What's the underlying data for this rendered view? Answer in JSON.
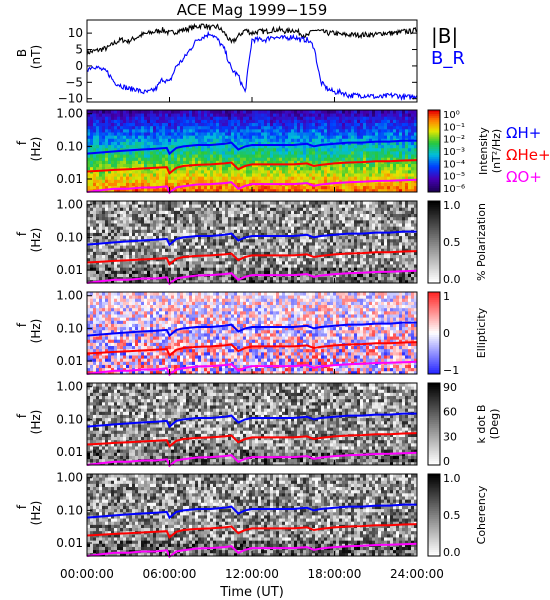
{
  "figure": {
    "title": "ACE Mag 1999−159",
    "x_axis": {
      "label": "Time (UT)",
      "ticks": [
        "00:00:00",
        "06:00:00",
        "12:00:00",
        "18:00:00",
        "24:00:00"
      ],
      "range_hours": [
        0,
        24
      ]
    }
  },
  "chart_data": [
    {
      "type": "line",
      "panel": "magnetic-field",
      "ylabel": "B",
      "yunit": "(nT)",
      "ylim": [
        -11,
        14
      ],
      "yticks": [
        "10",
        "5",
        "0",
        "−5",
        "−10"
      ],
      "ytick_values": [
        10,
        5,
        0,
        -5,
        -10
      ],
      "legend_placement": "right",
      "series": [
        {
          "name": "|B|",
          "color": "#000000",
          "x": [
            0,
            0.5,
            1,
            1.5,
            2,
            2.5,
            3,
            3.5,
            4,
            4.5,
            5,
            5.5,
            6,
            6.5,
            7,
            7.5,
            8,
            8.5,
            9,
            9.5,
            10,
            10.5,
            11,
            11.5,
            12,
            12.5,
            13,
            13.5,
            14,
            14.5,
            15,
            15.5,
            16,
            16.5,
            17,
            17.5,
            18,
            18.5,
            19,
            19.5,
            20,
            20.5,
            21,
            21.5,
            22,
            22.5,
            23,
            23.5,
            24
          ],
          "y": [
            4,
            4.5,
            5,
            5.5,
            7,
            8,
            7.5,
            8.5,
            9.5,
            10,
            10.5,
            11,
            10,
            10.5,
            11,
            11.5,
            12,
            12.5,
            11.5,
            12,
            10,
            7,
            9,
            11,
            10,
            10.5,
            10.5,
            11,
            11,
            10.5,
            11,
            10,
            9,
            11,
            10.5,
            10,
            10,
            9.5,
            9.5,
            9.5,
            9.5,
            9.5,
            9.5,
            10,
            10,
            10,
            10.5,
            10.5,
            11
          ]
        },
        {
          "name": "B_R",
          "color": "#0000ff",
          "x": [
            0,
            0.5,
            1,
            1.5,
            2,
            2.5,
            3,
            3.5,
            4,
            4.5,
            5,
            5.5,
            6,
            6.5,
            7,
            7.5,
            8,
            8.5,
            9,
            9.5,
            10,
            10.5,
            11,
            11.5,
            12,
            12.5,
            13,
            13.5,
            14,
            14.5,
            15,
            15.5,
            16,
            16.5,
            17,
            17.5,
            18,
            18.5,
            19,
            19.5,
            20,
            20.5,
            21,
            21.5,
            22,
            22.5,
            23,
            23.5,
            24
          ],
          "y": [
            -1,
            0,
            -1,
            -2,
            -5,
            -6,
            -7,
            -7,
            -8,
            -8,
            -7,
            -4,
            -5,
            0,
            2,
            5,
            8,
            9,
            10,
            8,
            5,
            -1,
            -3,
            -8,
            8,
            8,
            8,
            9,
            8.5,
            8.5,
            9,
            8,
            8,
            6,
            -5,
            -7,
            -8,
            -8,
            -9,
            -9,
            -9,
            -9,
            -9.5,
            -9.5,
            -9,
            -9,
            -9.5,
            -9.5,
            -9
          ]
        }
      ]
    },
    {
      "type": "heatmap",
      "panel": "intensity",
      "ylabel": "f",
      "yunit": "(Hz)",
      "yscale": "log",
      "ylim": [
        0.004,
        1.3
      ],
      "yticks": [
        "1.00",
        "0.10",
        "0.01"
      ],
      "ytick_values": [
        1,
        0.1,
        0.01
      ],
      "colorbar": {
        "label": "Intensity",
        "unit": "(nT²/Hz)",
        "ticks": [
          "10⁰",
          "10⁻¹",
          "10⁻²",
          "10⁻³",
          "10⁻⁴",
          "10⁻⁵",
          "10⁻⁶"
        ],
        "colormap": "rainbow"
      },
      "overlay_labels": [
        {
          "text": "ΩH+",
          "color": "#0000ff"
        },
        {
          "text": "ΩHe+",
          "color": "#ff0000"
        },
        {
          "text": "ΩO+",
          "color": "#ff00ff"
        }
      ]
    },
    {
      "type": "heatmap",
      "panel": "polarization",
      "ylabel": "f",
      "yunit": "(Hz)",
      "yscale": "log",
      "ylim": [
        0.004,
        1.3
      ],
      "yticks": [
        "1.00",
        "0.10",
        "0.01"
      ],
      "ytick_values": [
        1,
        0.1,
        0.01
      ],
      "colorbar": {
        "label": "% Polarization",
        "unit": "",
        "ticks": [
          "1.0",
          "0.5",
          "0.0"
        ],
        "colormap": "grayscale"
      }
    },
    {
      "type": "heatmap",
      "panel": "ellipticity",
      "ylabel": "f",
      "yunit": "(Hz)",
      "yscale": "log",
      "ylim": [
        0.004,
        1.3
      ],
      "yticks": [
        "1.00",
        "0.10",
        "0.01"
      ],
      "ytick_values": [
        1,
        0.1,
        0.01
      ],
      "colorbar": {
        "label": "Ellipticity",
        "unit": "",
        "ticks": [
          "1",
          "0",
          "−1"
        ],
        "colormap": "blue-white-red"
      }
    },
    {
      "type": "heatmap",
      "panel": "k-dot-b",
      "ylabel": "f",
      "yunit": "(Hz)",
      "yscale": "log",
      "ylim": [
        0.004,
        1.3
      ],
      "yticks": [
        "1.00",
        "0.10",
        "0.01"
      ],
      "ytick_values": [
        1,
        0.1,
        0.01
      ],
      "colorbar": {
        "label": "k dot B",
        "unit": "(Deg)",
        "ticks": [
          "90",
          "60",
          "30",
          "0"
        ],
        "colormap": "grayscale"
      }
    },
    {
      "type": "heatmap",
      "panel": "coherency",
      "ylabel": "f",
      "yunit": "(Hz)",
      "yscale": "log",
      "ylim": [
        0.004,
        1.3
      ],
      "yticks": [
        "1.00",
        "0.10",
        "0.01"
      ],
      "ytick_values": [
        1,
        0.1,
        0.01
      ],
      "colorbar": {
        "label": "Coherency",
        "unit": "",
        "ticks": [
          "1.0",
          "0.5",
          "0.0"
        ],
        "colormap": "grayscale"
      }
    }
  ],
  "gyrofrequency_curves": {
    "x_hours": [
      0,
      1,
      2,
      3,
      4,
      5,
      5.8,
      6,
      6.5,
      7,
      8,
      9,
      10,
      10.5,
      11,
      11.5,
      12,
      13,
      14,
      15,
      16,
      16.5,
      17,
      18,
      19,
      20,
      21,
      22,
      23,
      24
    ],
    "H+_hz": [
      0.06,
      0.065,
      0.07,
      0.075,
      0.08,
      0.085,
      0.09,
      0.06,
      0.09,
      0.1,
      0.11,
      0.11,
      0.12,
      0.13,
      0.08,
      0.1,
      0.11,
      0.11,
      0.11,
      0.11,
      0.12,
      0.1,
      0.11,
      0.12,
      0.13,
      0.13,
      0.14,
      0.14,
      0.15,
      0.15
    ],
    "He+_hz": [
      0.017,
      0.018,
      0.019,
      0.02,
      0.021,
      0.022,
      0.023,
      0.015,
      0.022,
      0.025,
      0.027,
      0.028,
      0.03,
      0.032,
      0.02,
      0.025,
      0.028,
      0.028,
      0.028,
      0.028,
      0.03,
      0.025,
      0.027,
      0.03,
      0.032,
      0.033,
      0.035,
      0.035,
      0.037,
      0.038
    ],
    "O+_hz": [
      0.004,
      0.0045,
      0.005,
      0.005,
      0.0055,
      0.0055,
      0.006,
      0.0038,
      0.0055,
      0.006,
      0.0068,
      0.007,
      0.0075,
      0.008,
      0.005,
      0.0062,
      0.007,
      0.007,
      0.007,
      0.007,
      0.0075,
      0.0062,
      0.0068,
      0.0075,
      0.008,
      0.0083,
      0.0087,
      0.0088,
      0.0092,
      0.0095
    ]
  }
}
